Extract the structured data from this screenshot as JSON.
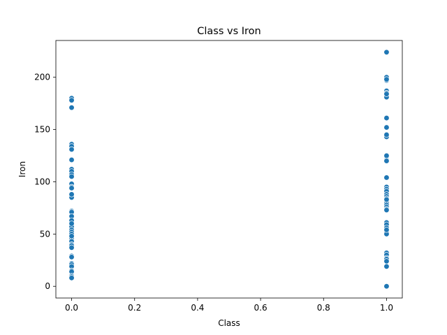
{
  "chart_data": {
    "type": "scatter",
    "title": "Class vs Iron",
    "xlabel": "Class",
    "ylabel": "Iron",
    "xlim": [
      -0.05,
      1.05
    ],
    "ylim": [
      -11.2,
      235.2
    ],
    "xticks": [
      0.0,
      0.2,
      0.4,
      0.6,
      0.8,
      1.0
    ],
    "xtick_labels": [
      "0.0",
      "0.2",
      "0.4",
      "0.6",
      "0.8",
      "1.0"
    ],
    "yticks": [
      0,
      50,
      100,
      150,
      200
    ],
    "ytick_labels": [
      "0",
      "50",
      "100",
      "150",
      "200"
    ],
    "grid": false,
    "legend": "none",
    "color": "#1f77b4",
    "series": [
      {
        "x": [
          0,
          0,
          0,
          0,
          0,
          0,
          0,
          0,
          0,
          0,
          0,
          0,
          0,
          0,
          0,
          0,
          0,
          0,
          0,
          0,
          0,
          0,
          0,
          0,
          0,
          0,
          0,
          0,
          0,
          0,
          0,
          0,
          0,
          0,
          0,
          0,
          0,
          0,
          0,
          0,
          0,
          0
        ],
        "y": [
          180,
          178,
          171,
          136,
          134,
          131,
          121,
          112,
          110,
          107,
          105,
          98,
          95,
          94,
          86,
          85,
          72,
          71,
          67,
          63,
          57,
          54,
          52,
          50,
          46,
          43,
          40,
          39,
          37,
          29,
          28,
          22,
          21,
          19,
          15,
          14,
          10,
          9,
          8,
          88,
          60,
          48
        ]
      },
      {
        "x": [
          1,
          1,
          1,
          1,
          1,
          1,
          1,
          1,
          1,
          1,
          1,
          1,
          1,
          1,
          1,
          1,
          1,
          1,
          1,
          1,
          1,
          1,
          1,
          1,
          1,
          1,
          1,
          1,
          1,
          1,
          1,
          1,
          1,
          1,
          1,
          1,
          1,
          1,
          1,
          1,
          1,
          1,
          1,
          1,
          1
        ],
        "y": [
          224,
          200,
          197,
          187,
          185,
          182,
          181,
          161,
          152,
          144,
          143,
          124,
          121,
          120,
          104,
          95,
          93,
          91,
          88,
          86,
          84,
          80,
          78,
          76,
          74,
          61,
          59,
          56,
          54,
          52,
          50,
          32,
          30,
          27,
          26,
          24,
          19,
          0,
          83,
          73,
          125,
          184,
          198,
          145,
          54
        ]
      }
    ]
  }
}
